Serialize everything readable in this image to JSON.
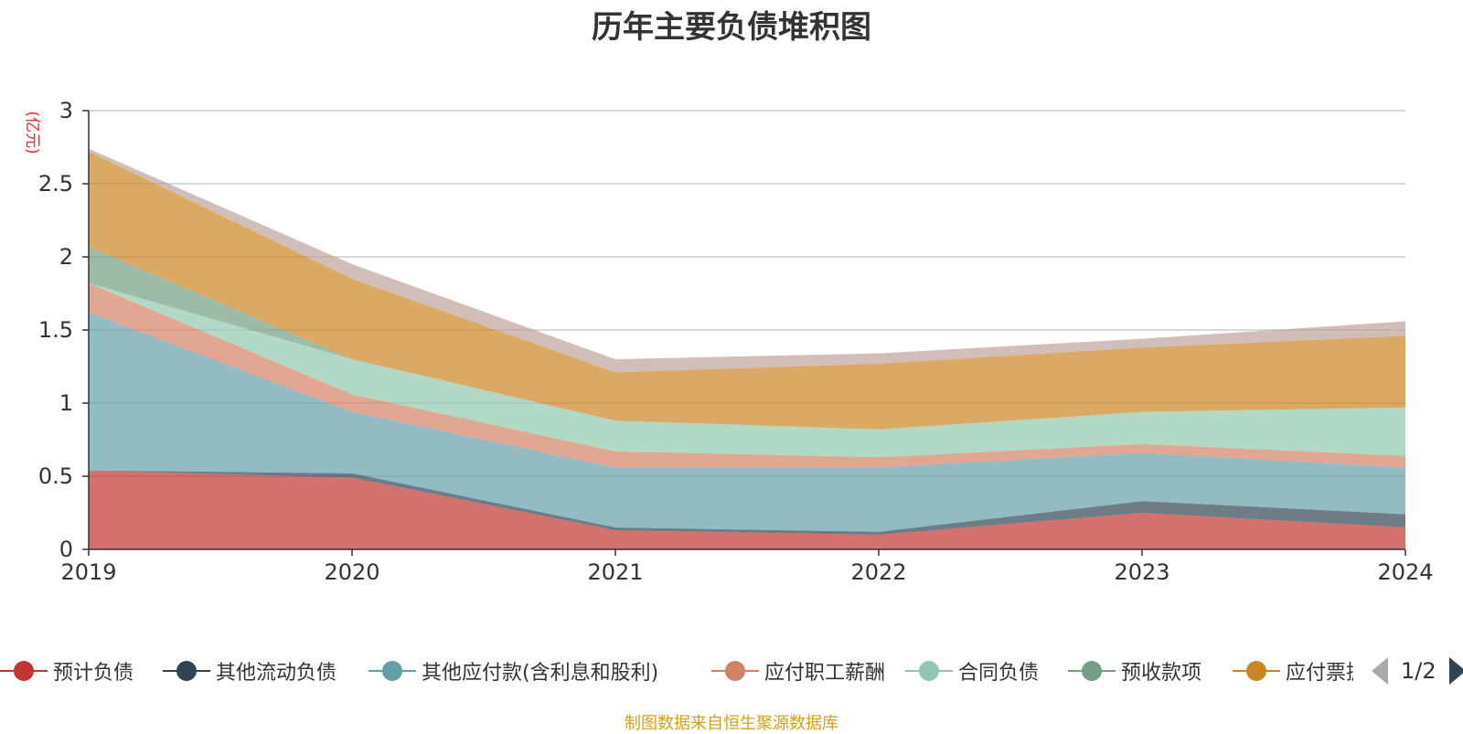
{
  "chart_data": {
    "type": "area",
    "title": "历年主要负债堆积图",
    "unit_label": "(亿元)",
    "x": [
      "2019",
      "2020",
      "2021",
      "2022",
      "2023",
      "2024"
    ],
    "ylim": [
      0,
      3
    ],
    "yticks": [
      "0",
      "0.5",
      "1",
      "1.5",
      "2",
      "2.5",
      "3"
    ],
    "grid": true,
    "stacked": true,
    "series": [
      {
        "name": "预计负债",
        "values": [
          0.54,
          0.49,
          0.13,
          0.1,
          0.25,
          0.15
        ]
      },
      {
        "name": "其他流动负债",
        "values": [
          0.0,
          0.03,
          0.02,
          0.02,
          0.08,
          0.09
        ]
      },
      {
        "name": "其他应付款(含利息和股利)",
        "values": [
          1.08,
          0.42,
          0.41,
          0.44,
          0.33,
          0.32
        ]
      },
      {
        "name": "应付职工薪酬",
        "values": [
          0.2,
          0.12,
          0.11,
          0.07,
          0.06,
          0.08
        ]
      },
      {
        "name": "合同负债",
        "values": [
          0.0,
          0.24,
          0.21,
          0.19,
          0.22,
          0.33
        ]
      },
      {
        "name": "预收款项",
        "values": [
          0.25,
          0.0,
          0.0,
          0.0,
          0.0,
          0.0
        ]
      },
      {
        "name": "应付票据及应付账款",
        "values": [
          0.65,
          0.55,
          0.33,
          0.45,
          0.44,
          0.49
        ]
      },
      {
        "name": "",
        "values": [
          0.02,
          0.1,
          0.09,
          0.07,
          0.06,
          0.1
        ]
      }
    ]
  },
  "legend": {
    "items": [
      {
        "label": "预计负债",
        "color": "#c23531"
      },
      {
        "label": "其他流动负债",
        "color": "#2f4554"
      },
      {
        "label": "其他应付款(含利息和股利)",
        "color": "#61a0a8"
      },
      {
        "label": "应付职工薪酬",
        "color": "#d48265"
      },
      {
        "label": "合同负债",
        "color": "#91c7ae"
      },
      {
        "label": "预收款项",
        "color": "#749f83"
      },
      {
        "label": "应付票据及应付账款",
        "color": "#ca8622"
      }
    ],
    "page": "1/2"
  },
  "colors": {
    "series": [
      "#c23531",
      "#2f4554",
      "#61a0a8",
      "#d48265",
      "#91c7ae",
      "#749f83",
      "#ca8622",
      "#bda29a"
    ]
  },
  "source": "制图数据来自恒生聚源数据库"
}
